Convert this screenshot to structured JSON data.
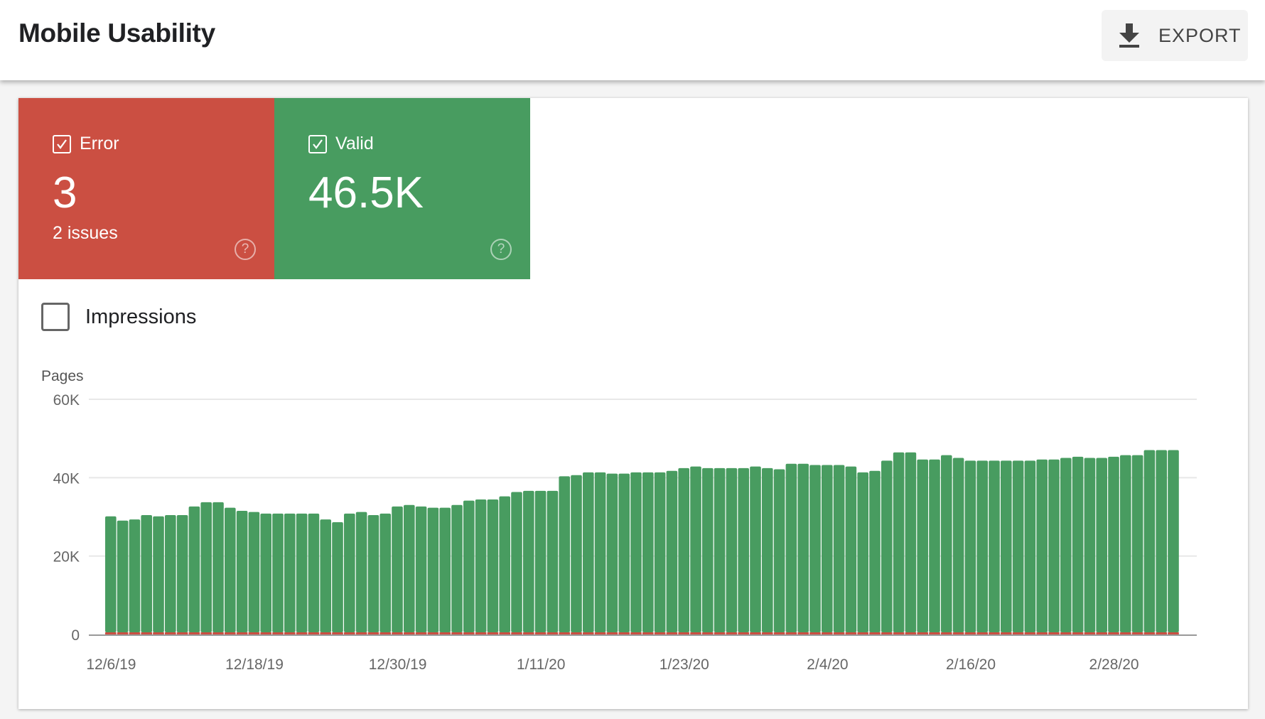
{
  "header": {
    "title": "Mobile Usability",
    "export_label": "EXPORT",
    "export_icon": "download-icon"
  },
  "tiles": [
    {
      "label": "Error",
      "value": "3",
      "sub": "2 issues",
      "checked": true,
      "color": "#cb4f42",
      "icon": "help-icon"
    },
    {
      "label": "Valid",
      "value": "46.5K",
      "checked": true,
      "color": "#489c60",
      "icon": "help-icon"
    }
  ],
  "impressions": {
    "label": "Impressions",
    "checked": false
  },
  "chart_data": {
    "type": "bar",
    "stacked": true,
    "ylabel": "Pages",
    "ylim": [
      0,
      60000
    ],
    "yticks": [
      {
        "v": 0,
        "label": "0"
      },
      {
        "v": 20000,
        "label": "20K"
      },
      {
        "v": 40000,
        "label": "40K"
      },
      {
        "v": 60000,
        "label": "60K"
      }
    ],
    "xtick_labels": [
      "12/6/19",
      "12/18/19",
      "12/30/19",
      "1/11/20",
      "1/23/20",
      "2/4/20",
      "2/16/20",
      "2/28/20"
    ],
    "grid": true,
    "categories": [
      "12/6/19",
      "12/7/19",
      "12/8/19",
      "12/9/19",
      "12/10/19",
      "12/11/19",
      "12/12/19",
      "12/13/19",
      "12/14/19",
      "12/15/19",
      "12/16/19",
      "12/17/19",
      "12/18/19",
      "12/19/19",
      "12/20/19",
      "12/21/19",
      "12/22/19",
      "12/23/19",
      "12/24/19",
      "12/25/19",
      "12/26/19",
      "12/27/19",
      "12/28/19",
      "12/29/19",
      "12/30/19",
      "12/31/19",
      "1/1/20",
      "1/2/20",
      "1/3/20",
      "1/4/20",
      "1/5/20",
      "1/6/20",
      "1/7/20",
      "1/8/20",
      "1/9/20",
      "1/10/20",
      "1/11/20",
      "1/12/20",
      "1/13/20",
      "1/14/20",
      "1/15/20",
      "1/16/20",
      "1/17/20",
      "1/18/20",
      "1/19/20",
      "1/20/20",
      "1/21/20",
      "1/22/20",
      "1/23/20",
      "1/24/20",
      "1/25/20",
      "1/26/20",
      "1/27/20",
      "1/28/20",
      "1/29/20",
      "1/30/20",
      "1/31/20",
      "2/1/20",
      "2/2/20",
      "2/3/20",
      "2/4/20",
      "2/5/20",
      "2/6/20",
      "2/7/20",
      "2/8/20",
      "2/9/20",
      "2/10/20",
      "2/11/20",
      "2/12/20",
      "2/13/20",
      "2/14/20",
      "2/15/20",
      "2/16/20",
      "2/17/20",
      "2/18/20",
      "2/19/20",
      "2/20/20",
      "2/21/20",
      "2/22/20",
      "2/23/20",
      "2/24/20",
      "2/25/20",
      "2/26/20",
      "2/27/20",
      "2/28/20",
      "2/29/20",
      "3/1/20",
      "3/2/20",
      "3/3/20",
      "3/4/20"
    ],
    "series": [
      {
        "name": "Valid",
        "color": "#489c60",
        "values": [
          29600,
          28500,
          28800,
          29900,
          29600,
          29900,
          29900,
          32100,
          33200,
          33200,
          31800,
          31000,
          30700,
          30300,
          30300,
          30300,
          30300,
          30300,
          28800,
          28100,
          30300,
          30700,
          29900,
          30300,
          32100,
          32500,
          32100,
          31800,
          31800,
          32500,
          33600,
          33900,
          33900,
          34700,
          35800,
          36100,
          36100,
          36100,
          39800,
          40100,
          40800,
          40800,
          40500,
          40500,
          40800,
          40800,
          40800,
          41200,
          41900,
          42300,
          41900,
          41900,
          41900,
          41900,
          42300,
          41900,
          41600,
          43000,
          43000,
          42700,
          42700,
          42700,
          42300,
          40800,
          41200,
          43800,
          45900,
          45900,
          44100,
          44100,
          45200,
          44500,
          43800,
          43800,
          43800,
          43800,
          43800,
          43800,
          44100,
          44100,
          44500,
          44800,
          44500,
          44500,
          44800,
          45200,
          45200,
          46500,
          46500,
          46500
        ]
      },
      {
        "name": "Error",
        "color": "#cb4f42",
        "values": [
          3,
          3,
          3,
          3,
          3,
          3,
          3,
          3,
          3,
          3,
          3,
          3,
          3,
          3,
          3,
          3,
          3,
          3,
          3,
          3,
          3,
          3,
          3,
          3,
          3,
          3,
          3,
          3,
          3,
          3,
          3,
          3,
          3,
          3,
          3,
          3,
          3,
          3,
          3,
          3,
          3,
          3,
          3,
          3,
          3,
          3,
          3,
          3,
          3,
          3,
          3,
          3,
          3,
          3,
          3,
          3,
          3,
          3,
          3,
          3,
          3,
          3,
          3,
          3,
          3,
          3,
          3,
          3,
          3,
          3,
          3,
          3,
          3,
          3,
          3,
          3,
          3,
          3,
          3,
          3,
          3,
          3,
          3,
          3,
          3,
          3,
          3,
          3,
          3,
          3
        ]
      }
    ]
  }
}
